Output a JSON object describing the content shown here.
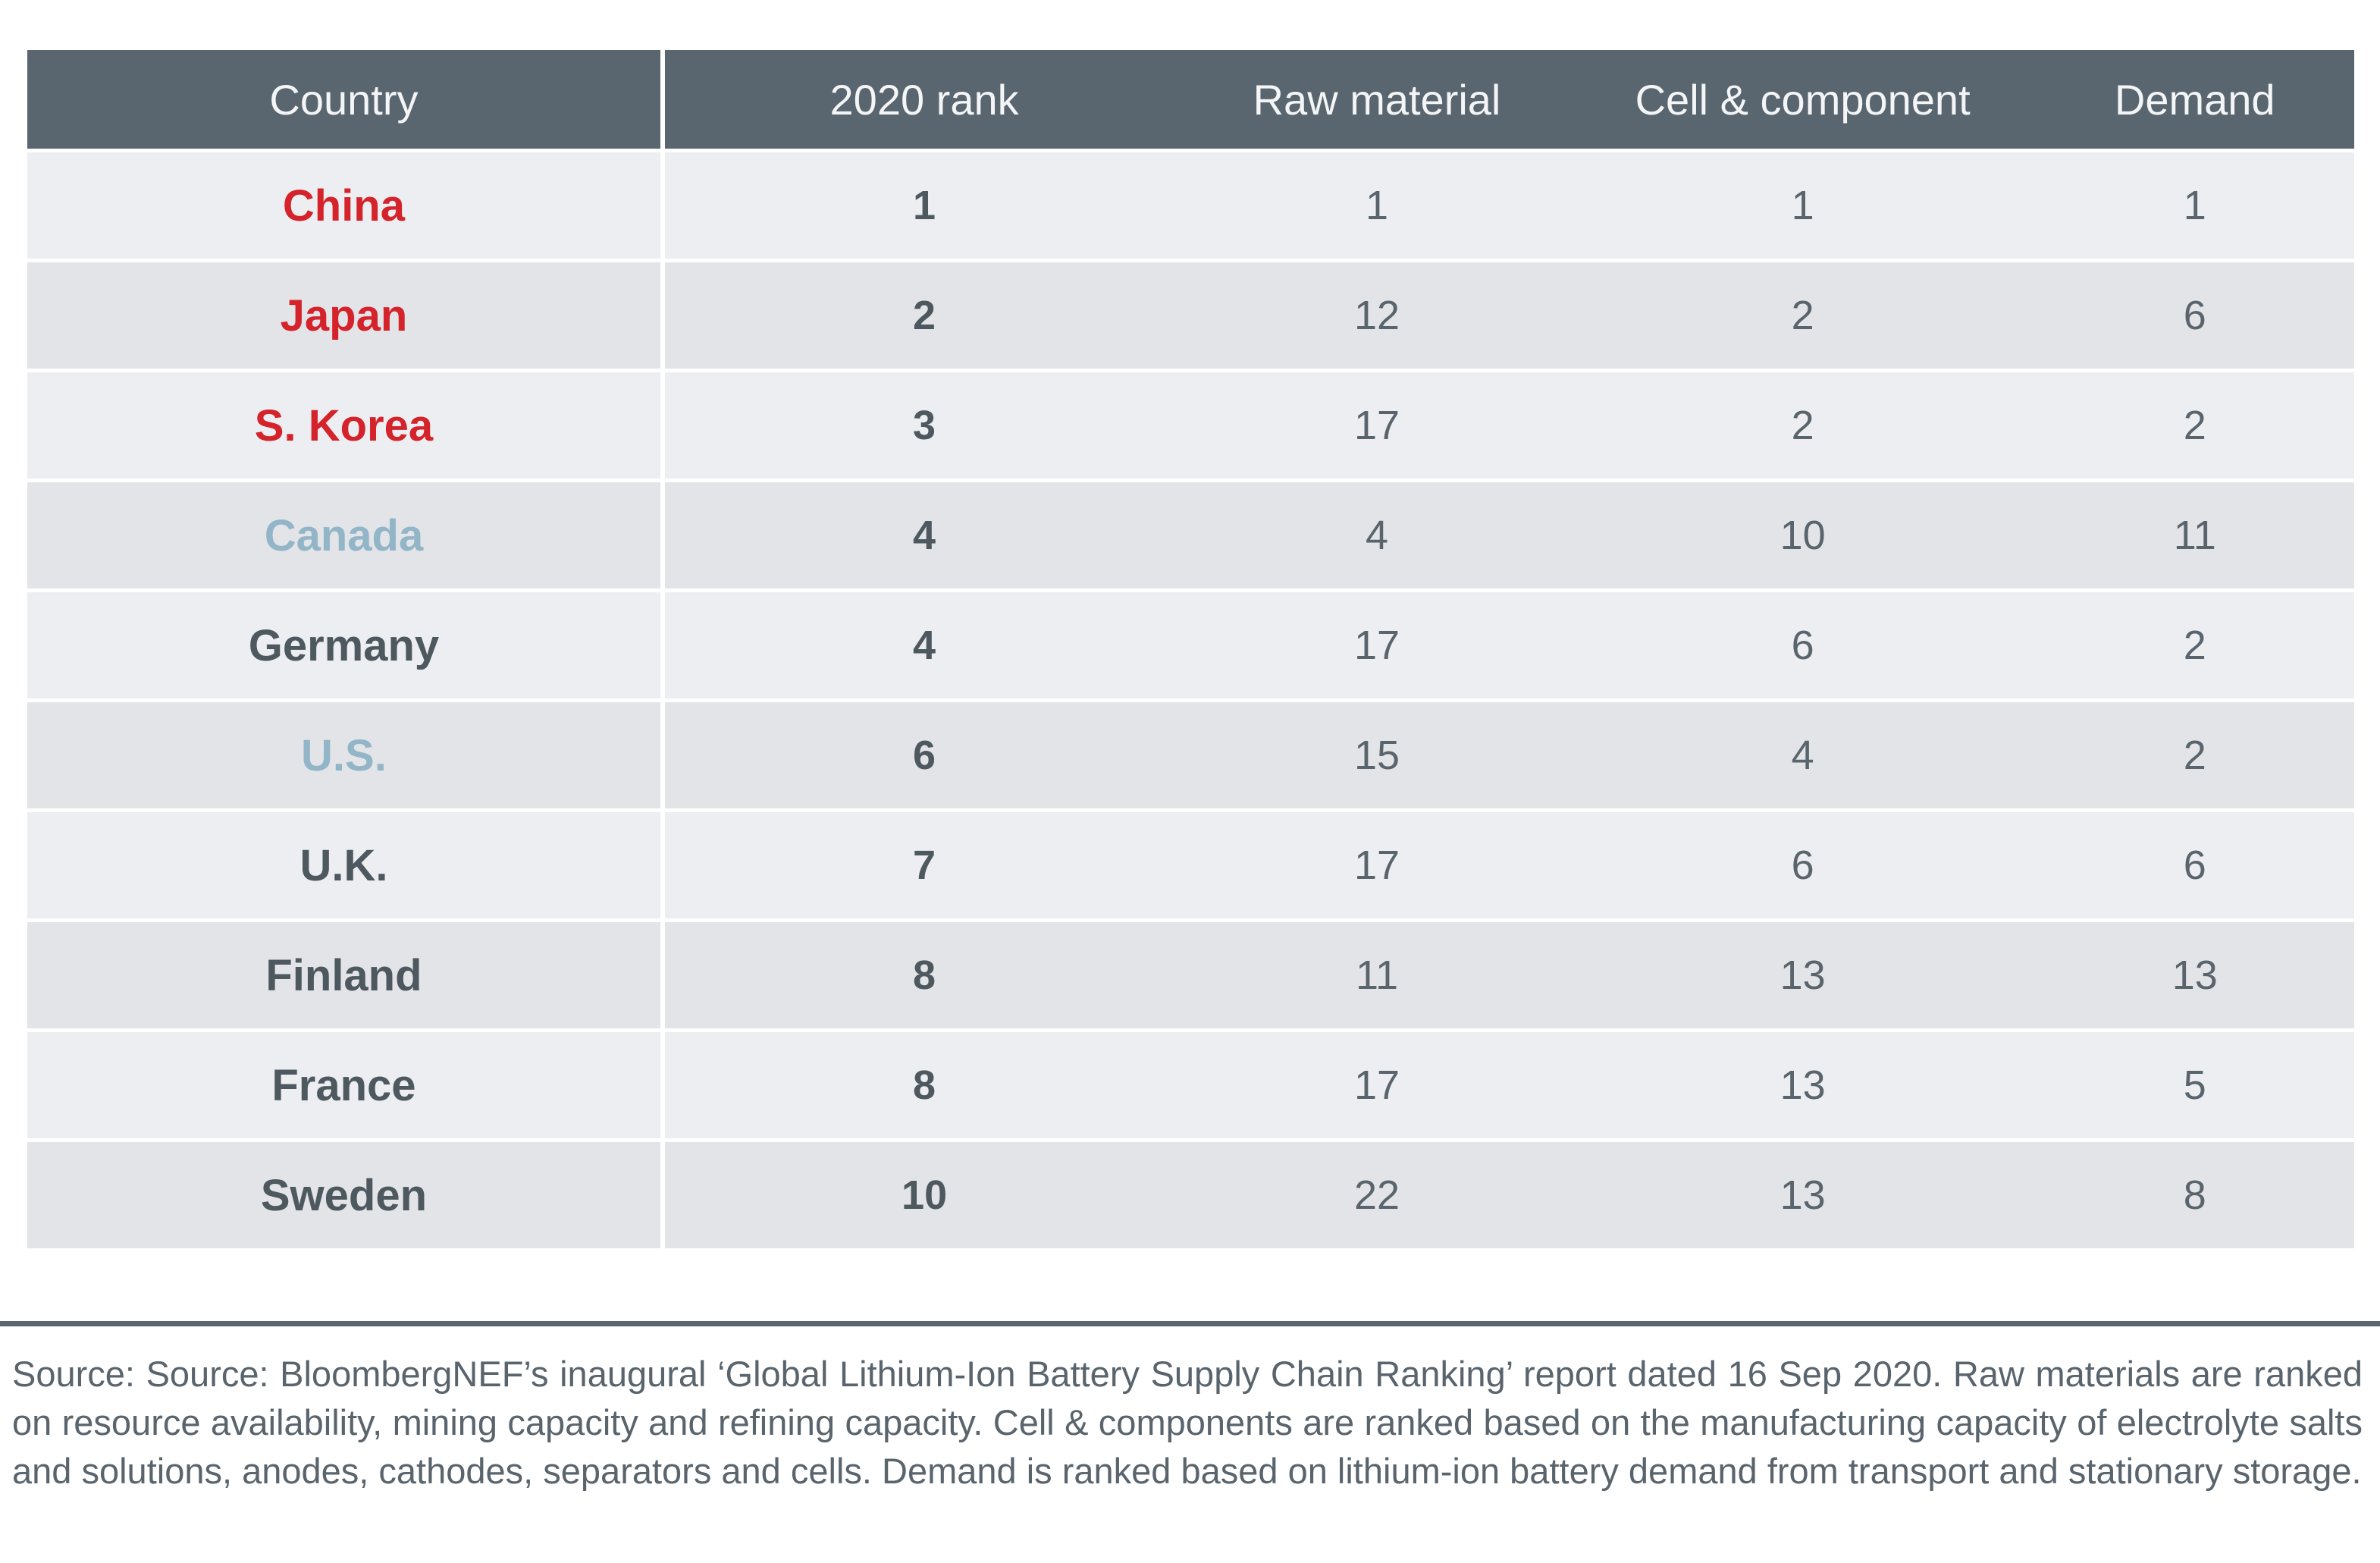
{
  "chart_data": {
    "type": "table",
    "columns": [
      "Country",
      "2020 rank",
      "Raw material",
      "Cell & component",
      "Demand"
    ],
    "rows": [
      {
        "country": "China",
        "country_color": "red",
        "rank_2020": "1",
        "raw_material": "1",
        "cell_component": "1",
        "demand": "1"
      },
      {
        "country": "Japan",
        "country_color": "red",
        "rank_2020": "2",
        "raw_material": "12",
        "cell_component": "2",
        "demand": "6"
      },
      {
        "country": "S. Korea",
        "country_color": "red",
        "rank_2020": "3",
        "raw_material": "17",
        "cell_component": "2",
        "demand": "2"
      },
      {
        "country": "Canada",
        "country_color": "blue",
        "rank_2020": "4",
        "raw_material": "4",
        "cell_component": "10",
        "demand": "11"
      },
      {
        "country": "Germany",
        "country_color": "dark",
        "rank_2020": "4",
        "raw_material": "17",
        "cell_component": "6",
        "demand": "2"
      },
      {
        "country": "U.S.",
        "country_color": "blue",
        "rank_2020": "6",
        "raw_material": "15",
        "cell_component": "4",
        "demand": "2"
      },
      {
        "country": "U.K.",
        "country_color": "dark",
        "rank_2020": "7",
        "raw_material": "17",
        "cell_component": "6",
        "demand": "6"
      },
      {
        "country": "Finland",
        "country_color": "dark",
        "rank_2020": "8",
        "raw_material": "11",
        "cell_component": "13",
        "demand": "13"
      },
      {
        "country": "France",
        "country_color": "dark",
        "rank_2020": "8",
        "raw_material": "17",
        "cell_component": "13",
        "demand": "5"
      },
      {
        "country": "Sweden",
        "country_color": "dark",
        "rank_2020": "10",
        "raw_material": "22",
        "cell_component": "13",
        "demand": "8"
      }
    ],
    "title": "",
    "legend_position": "none",
    "grid": "off"
  },
  "footer": {
    "source_text": "Source: Source: BloombergNEF’s inaugural ‘Global Lithium-Ion Battery Supply Chain Ranking’ report dated 16 Sep 2020. Raw materials are ranked on resource availability, mining capacity and refining capacity. Cell & components are ranked based on the manufacturing capacity of electrolyte salts and solutions, anodes, cathodes, separators and cells. Demand is ranked based on lithium-ion battery demand from transport and stationary storage."
  },
  "colors": {
    "red": "#d5232b",
    "blue": "#92b5c8",
    "dark": "#4d585f",
    "header_bg": "#5a666f",
    "header_text": "#f3f5f6",
    "row_odd_bg": "#eceef1",
    "row_even_bg": "#e3e4e7",
    "number_text": "#59646d",
    "divider": "#5a6670"
  }
}
